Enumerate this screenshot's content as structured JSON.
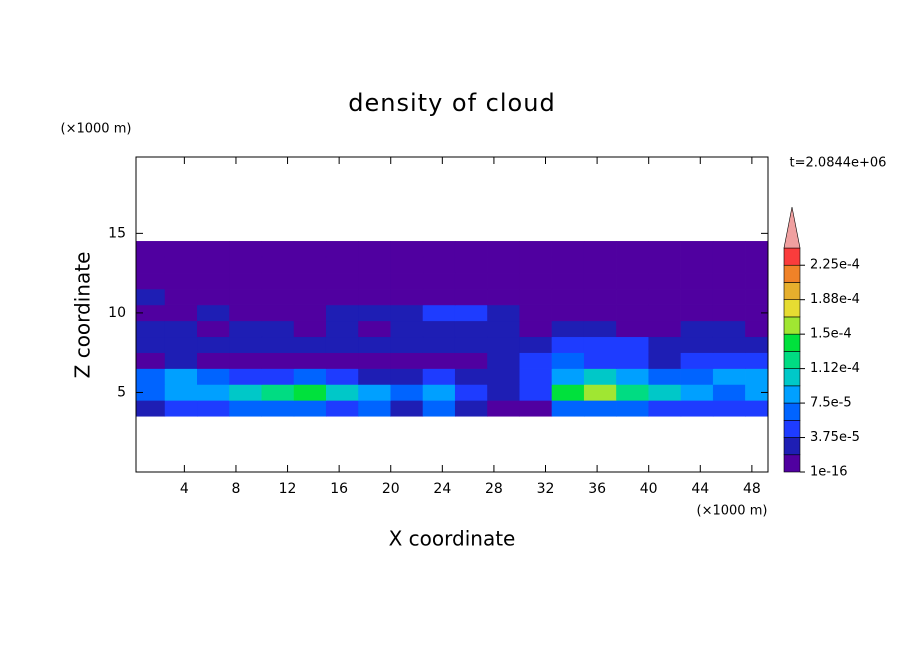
{
  "chart_data": {
    "type": "contour",
    "title": "density of cloud",
    "x_label": "X coordinate",
    "y_label": "Z coordinate",
    "x_unit": "(×1000 m)",
    "y_unit": "(×1000 m)",
    "time_label": "t=2.0844e+06",
    "xlim": [
      0.25,
      49.25
    ],
    "ylim": [
      0,
      19.8
    ],
    "xticks": [
      4,
      8,
      12,
      16,
      20,
      24,
      28,
      32,
      36,
      40,
      44,
      48
    ],
    "yticks": [
      5,
      10,
      15
    ],
    "x": [
      1.25,
      3.75,
      6.25,
      8.75,
      11.25,
      13.75,
      16.25,
      18.75,
      21.25,
      23.75,
      26.25,
      28.75,
      31.25,
      33.75,
      36.25,
      38.75,
      41.25,
      43.75,
      46.25,
      48.75
    ],
    "z": [
      4,
      5,
      6,
      7,
      8,
      9,
      10,
      11,
      12,
      13,
      14
    ],
    "values": [
      [
        3e-05,
        5e-05,
        5e-05,
        6e-05,
        7e-05,
        7e-05,
        5e-05,
        6e-05,
        3e-05,
        7e-05,
        3e-05,
        1e-06,
        1e-06,
        6e-05,
        7e-05,
        6e-05,
        5e-05,
        5e-05,
        4e-05,
        5e-05
      ],
      [
        7e-05,
        8e-05,
        9e-05,
        0.00011,
        0.00013,
        0.00014,
        0.00011,
        8e-05,
        6e-05,
        9e-05,
        5e-05,
        2e-05,
        4e-05,
        0.00014,
        0.00016,
        0.00012,
        0.0001,
        8e-05,
        7e-05,
        9e-05
      ],
      [
        6e-05,
        8e-05,
        6e-05,
        4e-05,
        5e-05,
        6e-05,
        4e-05,
        3e-05,
        3e-05,
        4e-05,
        3e-05,
        2e-05,
        5e-05,
        9e-05,
        0.0001,
        8e-05,
        6e-05,
        7e-05,
        8e-05,
        9e-05
      ],
      [
        1e-06,
        2e-05,
        1e-06,
        1e-06,
        1e-06,
        1e-06,
        1e-06,
        1e-06,
        1e-06,
        1e-06,
        1e-06,
        2e-05,
        4e-05,
        6e-05,
        5e-05,
        4e-05,
        2e-05,
        4e-05,
        5e-05,
        4e-05
      ],
      [
        2e-05,
        2e-05,
        2e-05,
        2e-05,
        2e-05,
        2e-05,
        2e-05,
        2e-05,
        2e-05,
        2e-05,
        2e-05,
        2e-05,
        3e-05,
        5e-05,
        4e-05,
        4e-05,
        3e-05,
        2e-05,
        2e-05,
        2e-05
      ],
      [
        2e-05,
        2e-05,
        1e-06,
        2e-05,
        2e-05,
        1e-06,
        2e-05,
        1e-06,
        2e-05,
        2e-05,
        2e-05,
        2e-05,
        1e-06,
        2e-05,
        2e-05,
        1e-06,
        1e-06,
        2e-05,
        2e-05,
        1e-06
      ],
      [
        1e-06,
        1e-06,
        2e-05,
        1e-06,
        1e-06,
        1e-06,
        2e-05,
        2e-05,
        3e-05,
        5e-05,
        4e-05,
        2e-05,
        1e-06,
        1e-06,
        1e-06,
        1e-06,
        1e-06,
        1e-06,
        1e-06,
        1e-06
      ],
      [
        2e-05,
        1e-06,
        1e-06,
        1e-06,
        1e-06,
        1e-06,
        1e-06,
        1e-06,
        1e-06,
        1e-06,
        1e-06,
        1e-06,
        1e-06,
        1e-06,
        1e-06,
        1e-06,
        1e-06,
        1e-06,
        1e-06,
        1e-06
      ],
      [
        1e-06,
        1e-06,
        1e-06,
        1e-06,
        1e-06,
        1e-06,
        1e-06,
        1e-06,
        1e-06,
        1e-06,
        1e-06,
        1e-06,
        1e-06,
        1e-06,
        1e-06,
        1e-06,
        1e-06,
        1e-06,
        1e-06,
        1e-06
      ],
      [
        1e-06,
        1e-06,
        1e-06,
        1e-06,
        1e-06,
        1e-06,
        1e-06,
        1e-06,
        1e-06,
        1e-06,
        1e-06,
        1e-06,
        1e-06,
        1e-06,
        1e-06,
        1e-06,
        1e-06,
        1e-06,
        1e-06,
        1e-06
      ],
      [
        1e-06,
        1e-06,
        1e-06,
        1e-06,
        1e-06,
        1e-06,
        1e-06,
        1e-06,
        1e-06,
        1e-06,
        1e-06,
        1e-06,
        1e-06,
        1e-06,
        1e-06,
        1e-06,
        1e-06,
        1e-06,
        1e-06,
        1e-06
      ]
    ],
    "colorbar": {
      "levels": [
        1e-16,
        1.875e-05,
        3.75e-05,
        5.625e-05,
        7.5e-05,
        9.375e-05,
        0.0001125,
        0.00013125,
        0.00015,
        0.00016875,
        0.0001875,
        0.00020625,
        0.000225,
        0.00024375
      ],
      "colors": [
        "#5000a0",
        "#1e1eb4",
        "#1e3cff",
        "#0064ff",
        "#00a0ff",
        "#00c8c8",
        "#00dc82",
        "#00e13c",
        "#a0e632",
        "#e6dc32",
        "#e6af2d",
        "#f08228",
        "#fa3c3c"
      ],
      "extend_color": "#f0a0a0",
      "ticks": [
        {
          "value": 1e-16,
          "label": "1e-16"
        },
        {
          "value": 3.75e-05,
          "label": "3.75e-5"
        },
        {
          "value": 7.5e-05,
          "label": "7.5e-5"
        },
        {
          "value": 0.0001125,
          "label": "1.12e-4"
        },
        {
          "value": 0.00015,
          "label": "1.5e-4"
        },
        {
          "value": 0.0001875,
          "label": "1.88e-4"
        },
        {
          "value": 0.000225,
          "label": "2.25e-4"
        }
      ]
    }
  }
}
